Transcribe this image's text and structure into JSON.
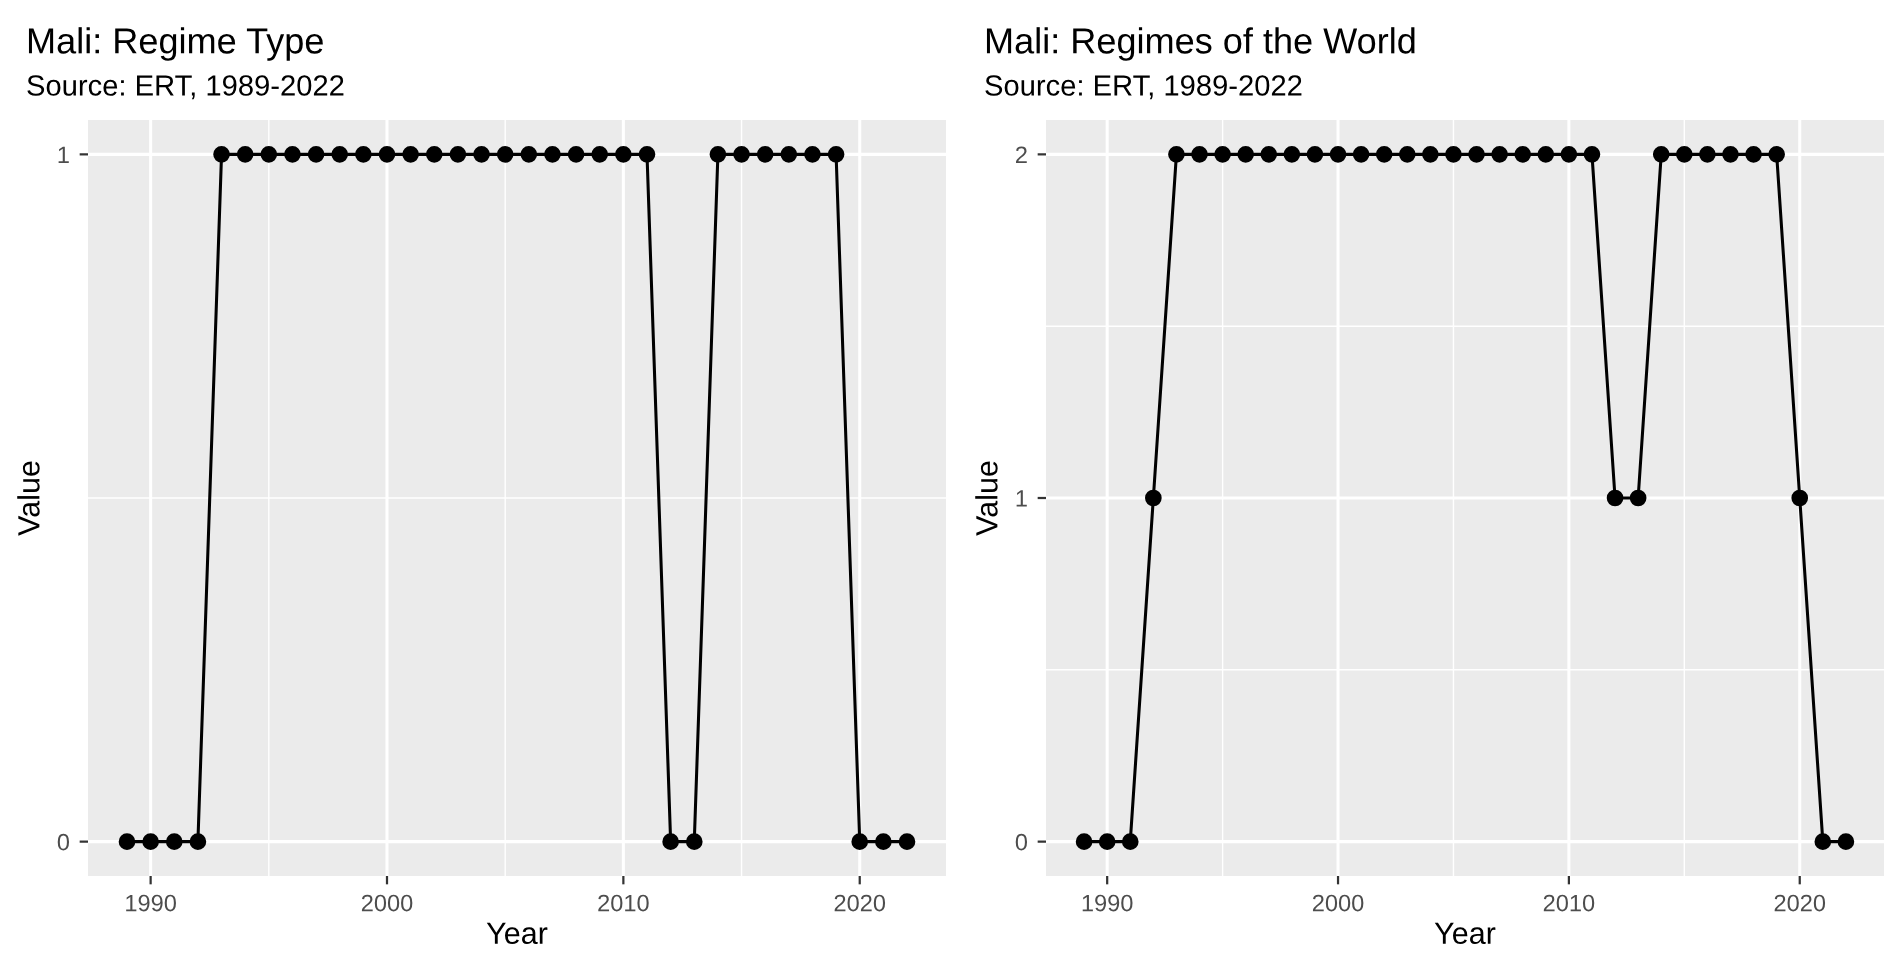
{
  "chart_data": [
    {
      "type": "line",
      "title": "Mali: Regime Type",
      "subtitle": "Source: ERT, 1989-2022",
      "xlabel": "Year",
      "ylabel": "Value",
      "x": [
        1989,
        1990,
        1991,
        1992,
        1993,
        1994,
        1995,
        1996,
        1997,
        1998,
        1999,
        2000,
        2001,
        2002,
        2003,
        2004,
        2005,
        2006,
        2007,
        2008,
        2009,
        2010,
        2011,
        2012,
        2013,
        2014,
        2015,
        2016,
        2017,
        2018,
        2019,
        2020,
        2021,
        2022
      ],
      "series": [
        {
          "color": "#000000",
          "values": [
            0,
            0,
            0,
            0,
            1,
            1,
            1,
            1,
            1,
            1,
            1,
            1,
            1,
            1,
            1,
            1,
            1,
            1,
            1,
            1,
            1,
            1,
            1,
            0,
            0,
            1,
            1,
            1,
            1,
            1,
            1,
            0,
            0,
            0
          ]
        }
      ],
      "xlim": [
        1987.35,
        2023.65
      ],
      "xticks": [
        1990,
        2000,
        2010,
        2020
      ],
      "ylim": [
        -0.05,
        1.05
      ],
      "yticks": [
        0,
        1
      ],
      "grid": true,
      "marker": "circle",
      "line_style": "solid"
    },
    {
      "type": "line",
      "title": "Mali: Regimes of the World",
      "subtitle": "Source: ERT, 1989-2022",
      "xlabel": "Year",
      "ylabel": "Value",
      "x": [
        1989,
        1990,
        1991,
        1992,
        1993,
        1994,
        1995,
        1996,
        1997,
        1998,
        1999,
        2000,
        2001,
        2002,
        2003,
        2004,
        2005,
        2006,
        2007,
        2008,
        2009,
        2010,
        2011,
        2012,
        2013,
        2014,
        2015,
        2016,
        2017,
        2018,
        2019,
        2020,
        2021,
        2022
      ],
      "series": [
        {
          "color": "#000000",
          "values": [
            0,
            0,
            0,
            1,
            2,
            2,
            2,
            2,
            2,
            2,
            2,
            2,
            2,
            2,
            2,
            2,
            2,
            2,
            2,
            2,
            2,
            2,
            2,
            1,
            1,
            2,
            2,
            2,
            2,
            2,
            2,
            1,
            0,
            0
          ]
        }
      ],
      "xlim": [
        1987.35,
        2023.65
      ],
      "xticks": [
        1990,
        2000,
        2010,
        2020
      ],
      "ylim": [
        -0.1,
        2.1
      ],
      "yticks": [
        0,
        1,
        2
      ],
      "grid": true,
      "marker": "circle",
      "line_style": "solid"
    }
  ]
}
